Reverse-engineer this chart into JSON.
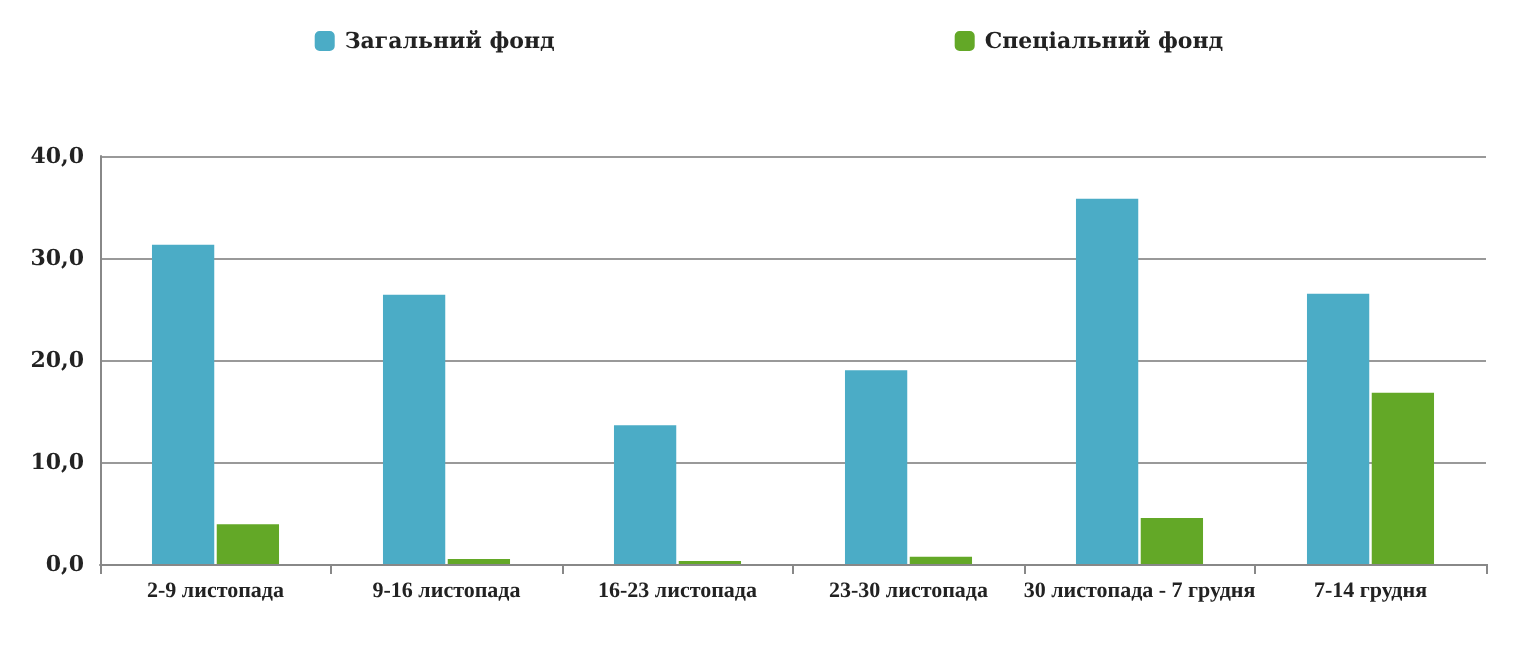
{
  "chart_data": {
    "type": "bar",
    "categories": [
      "2-9 листопада",
      "9-16 листопада",
      "16-23 листопада",
      "23-30 листопада",
      "30 листопада - 7 грудня",
      "7-14 грудня"
    ],
    "series": [
      {
        "name": "Загальний фонд",
        "color": "#4bacc6",
        "values": [
          31.3,
          26.4,
          13.6,
          19.0,
          35.8,
          26.5
        ]
      },
      {
        "name": "Спеціальний фонд",
        "color": "#63a827",
        "values": [
          3.9,
          0.5,
          0.3,
          0.7,
          4.5,
          16.8
        ]
      }
    ],
    "ylim": [
      0,
      40
    ],
    "yticks": [
      {
        "value": 0,
        "label": "0,0"
      },
      {
        "value": 10,
        "label": "10,0"
      },
      {
        "value": 20,
        "label": "20,0"
      },
      {
        "value": 30,
        "label": "30,0"
      },
      {
        "value": 40,
        "label": "40,0"
      }
    ],
    "grid": "y",
    "legend": "top"
  }
}
